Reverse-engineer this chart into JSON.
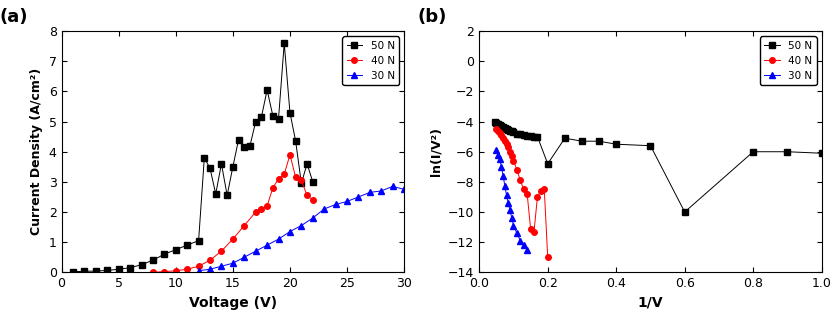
{
  "panel_a": {
    "title": "(a)",
    "xlabel": "Voltage (V)",
    "ylabel": "Current Density (A/cm²)",
    "xlim": [
      0,
      30
    ],
    "ylim": [
      0,
      8
    ],
    "xticks": [
      0,
      5,
      10,
      15,
      20,
      25,
      30
    ],
    "yticks": [
      0,
      1,
      2,
      3,
      4,
      5,
      6,
      7,
      8
    ],
    "series": {
      "50N": {
        "color": "black",
        "marker": "s",
        "x": [
          1,
          2,
          3,
          4,
          5,
          6,
          7,
          8,
          9,
          10,
          11,
          12,
          12.5,
          13,
          13.5,
          14,
          14.5,
          15,
          15.5,
          16,
          16.5,
          17,
          17.5,
          18,
          18.5,
          19,
          19.5,
          20,
          20.5,
          21,
          21.5,
          22
        ],
        "y": [
          0.02,
          0.03,
          0.04,
          0.06,
          0.1,
          0.15,
          0.25,
          0.4,
          0.6,
          0.75,
          0.9,
          1.05,
          3.8,
          3.45,
          2.6,
          3.6,
          2.55,
          3.5,
          4.4,
          4.15,
          4.2,
          5.0,
          5.15,
          6.05,
          5.2,
          5.1,
          7.6,
          5.3,
          4.35,
          2.95,
          3.6,
          3.0
        ]
      },
      "40N": {
        "color": "red",
        "marker": "o",
        "x": [
          8,
          9,
          10,
          11,
          12,
          13,
          14,
          15,
          16,
          17,
          17.5,
          18,
          18.5,
          19,
          19.5,
          20,
          20.5,
          21,
          21.5,
          22
        ],
        "y": [
          0.0,
          0.02,
          0.05,
          0.1,
          0.2,
          0.4,
          0.7,
          1.1,
          1.55,
          2.0,
          2.1,
          2.2,
          2.8,
          3.1,
          3.25,
          3.9,
          3.15,
          3.05,
          2.55,
          2.4
        ]
      },
      "30N": {
        "color": "blue",
        "marker": "^",
        "x": [
          12,
          13,
          14,
          15,
          16,
          17,
          18,
          19,
          20,
          21,
          22,
          23,
          24,
          25,
          26,
          27,
          28,
          29,
          30
        ],
        "y": [
          0.05,
          0.1,
          0.2,
          0.3,
          0.5,
          0.7,
          0.9,
          1.1,
          1.35,
          1.55,
          1.8,
          2.1,
          2.25,
          2.35,
          2.5,
          2.65,
          2.7,
          2.85,
          2.75
        ]
      }
    }
  },
  "panel_b": {
    "title": "(b)",
    "xlabel": "1/V",
    "ylabel": "ln(I/V²)",
    "xlim": [
      0.0,
      1.0
    ],
    "ylim": [
      -14,
      2
    ],
    "xticks": [
      0.0,
      0.2,
      0.4,
      0.6,
      0.8,
      1.0
    ],
    "yticks": [
      -14,
      -12,
      -10,
      -8,
      -6,
      -4,
      -2,
      0,
      2
    ],
    "series": {
      "50N": {
        "color": "black",
        "marker": "s",
        "x": [
          0.045,
          0.05,
          0.055,
          0.06,
          0.065,
          0.07,
          0.075,
          0.08,
          0.085,
          0.09,
          0.095,
          0.1,
          0.11,
          0.12,
          0.13,
          0.14,
          0.15,
          0.16,
          0.17,
          0.2,
          0.25,
          0.3,
          0.35,
          0.4,
          0.5,
          0.6,
          0.8,
          0.9,
          1.0
        ],
        "y": [
          -4.0,
          -4.1,
          -4.15,
          -4.2,
          -4.3,
          -4.35,
          -4.4,
          -4.5,
          -4.55,
          -4.6,
          -4.65,
          -4.7,
          -4.8,
          -4.85,
          -4.9,
          -4.95,
          -4.95,
          -5.0,
          -5.0,
          -6.8,
          -5.1,
          -5.3,
          -5.3,
          -5.5,
          -5.6,
          -10.0,
          -6.0,
          -6.0,
          -6.1
        ]
      },
      "40N": {
        "color": "red",
        "marker": "o",
        "x": [
          0.05,
          0.055,
          0.06,
          0.065,
          0.07,
          0.075,
          0.08,
          0.085,
          0.09,
          0.095,
          0.1,
          0.11,
          0.12,
          0.13,
          0.14,
          0.15,
          0.16,
          0.17,
          0.18,
          0.19,
          0.2
        ],
        "y": [
          -4.5,
          -4.6,
          -4.75,
          -4.9,
          -5.1,
          -5.3,
          -5.5,
          -5.7,
          -6.0,
          -6.3,
          -6.6,
          -7.2,
          -7.9,
          -8.5,
          -8.8,
          -11.1,
          -11.3,
          -9.0,
          -8.6,
          -8.5,
          -13.0
        ]
      },
      "30N": {
        "color": "blue",
        "marker": "^",
        "x": [
          0.05,
          0.055,
          0.06,
          0.065,
          0.07,
          0.075,
          0.08,
          0.085,
          0.09,
          0.095,
          0.1,
          0.11,
          0.12,
          0.13,
          0.14
        ],
        "y": [
          -5.9,
          -6.2,
          -6.5,
          -7.0,
          -7.6,
          -8.3,
          -8.9,
          -9.4,
          -9.9,
          -10.4,
          -10.9,
          -11.4,
          -11.9,
          -12.2,
          -12.5
        ]
      }
    }
  },
  "background_color": "#ffffff"
}
